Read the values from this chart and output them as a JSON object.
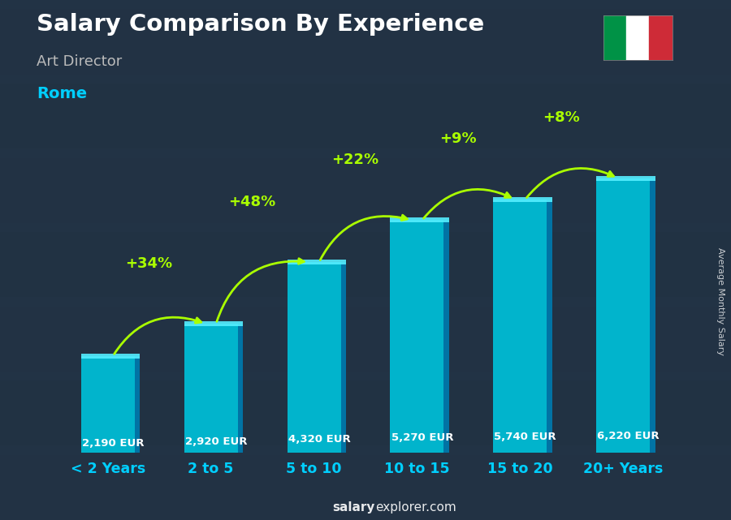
{
  "title": "Salary Comparison By Experience",
  "subtitle": "Art Director",
  "city": "Rome",
  "ylabel": "Average Monthly Salary",
  "watermark_bold": "salary",
  "watermark_normal": "explorer.com",
  "categories": [
    "< 2 Years",
    "2 to 5",
    "5 to 10",
    "10 to 15",
    "15 to 20",
    "20+ Years"
  ],
  "values": [
    2190,
    2920,
    4320,
    5270,
    5740,
    6220
  ],
  "value_labels": [
    "2,190 EUR",
    "2,920 EUR",
    "4,320 EUR",
    "5,270 EUR",
    "5,740 EUR",
    "6,220 EUR"
  ],
  "pct_labels": [
    "+34%",
    "+48%",
    "+22%",
    "+9%",
    "+8%"
  ],
  "bar_color": "#00bcd4",
  "bar_side_color": "#0077aa",
  "bar_top_color": "#55eeff",
  "bg_color": "#2c3e50",
  "title_color": "#ffffff",
  "subtitle_color": "#bbbbbb",
  "city_color": "#00cfff",
  "value_label_color": "#ffffff",
  "pct_color": "#aaff00",
  "tick_color": "#00cfff",
  "ylabel_color": "#ffffff",
  "figsize": [
    9.0,
    6.41
  ],
  "dpi": 100
}
